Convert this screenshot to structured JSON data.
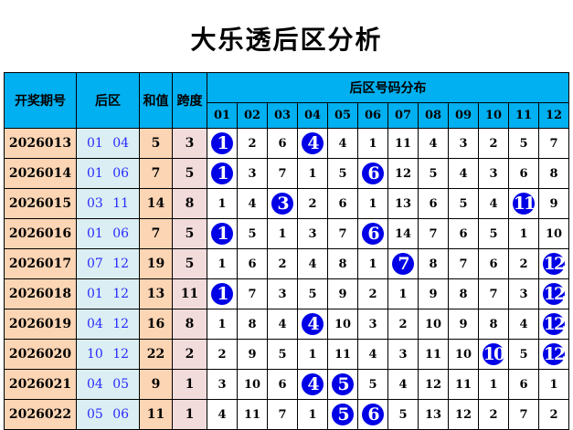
{
  "title": "大乐透后区分析",
  "headers": {
    "period": "开奖期号",
    "back": "后区",
    "sum": "和值",
    "span": "跨度",
    "distribution": "后区号码分布"
  },
  "columns": [
    "01",
    "02",
    "03",
    "04",
    "05",
    "06",
    "07",
    "08",
    "09",
    "10",
    "11",
    "12"
  ],
  "colors": {
    "header": "#00B0F0",
    "period_bg": "#FCD5B4",
    "back_bg": "#DAEEF3",
    "sum_bg": "#FCD5B4",
    "span_bg": "#F2DCDB",
    "ball": "#0000E6",
    "back_text": "#2B2BFF"
  },
  "rows": [
    {
      "period": "2026013",
      "back": "01 04",
      "sum": "5",
      "span": "3",
      "cells": [
        "1",
        "2",
        "6",
        "4",
        "4",
        "1",
        "11",
        "4",
        "3",
        "2",
        "5",
        "7"
      ],
      "hits": [
        1,
        4
      ]
    },
    {
      "period": "2026014",
      "back": "01 06",
      "sum": "7",
      "span": "5",
      "cells": [
        "1",
        "3",
        "7",
        "1",
        "5",
        "6",
        "12",
        "5",
        "4",
        "3",
        "6",
        "8"
      ],
      "hits": [
        1,
        6
      ]
    },
    {
      "period": "2026015",
      "back": "03 11",
      "sum": "14",
      "span": "8",
      "cells": [
        "1",
        "4",
        "3",
        "2",
        "6",
        "1",
        "13",
        "6",
        "5",
        "4",
        "11",
        "9"
      ],
      "hits": [
        3,
        11
      ]
    },
    {
      "period": "2026016",
      "back": "01 06",
      "sum": "7",
      "span": "5",
      "cells": [
        "1",
        "5",
        "1",
        "3",
        "7",
        "6",
        "14",
        "7",
        "6",
        "5",
        "1",
        "10"
      ],
      "hits": [
        1,
        6
      ]
    },
    {
      "period": "2026017",
      "back": "07 12",
      "sum": "19",
      "span": "5",
      "cells": [
        "1",
        "6",
        "2",
        "4",
        "8",
        "1",
        "7",
        "8",
        "7",
        "6",
        "2",
        "12"
      ],
      "hits": [
        7,
        12
      ]
    },
    {
      "period": "2026018",
      "back": "01 12",
      "sum": "13",
      "span": "11",
      "cells": [
        "1",
        "7",
        "3",
        "5",
        "9",
        "2",
        "1",
        "9",
        "8",
        "7",
        "3",
        "12"
      ],
      "hits": [
        1,
        12
      ]
    },
    {
      "period": "2026019",
      "back": "04 12",
      "sum": "16",
      "span": "8",
      "cells": [
        "1",
        "8",
        "4",
        "4",
        "10",
        "3",
        "2",
        "10",
        "9",
        "8",
        "4",
        "12"
      ],
      "hits": [
        4,
        12
      ]
    },
    {
      "period": "2026020",
      "back": "10 12",
      "sum": "22",
      "span": "2",
      "cells": [
        "2",
        "9",
        "5",
        "1",
        "11",
        "4",
        "3",
        "11",
        "10",
        "10",
        "5",
        "12"
      ],
      "hits": [
        10,
        12
      ]
    },
    {
      "period": "2026021",
      "back": "04 05",
      "sum": "9",
      "span": "1",
      "cells": [
        "3",
        "10",
        "6",
        "4",
        "5",
        "5",
        "4",
        "12",
        "11",
        "1",
        "6",
        "1"
      ],
      "hits": [
        4,
        5
      ]
    },
    {
      "period": "2026022",
      "back": "05 06",
      "sum": "11",
      "span": "1",
      "cells": [
        "4",
        "11",
        "7",
        "1",
        "5",
        "6",
        "5",
        "13",
        "12",
        "2",
        "7",
        "2"
      ],
      "hits": [
        5,
        6
      ]
    }
  ]
}
